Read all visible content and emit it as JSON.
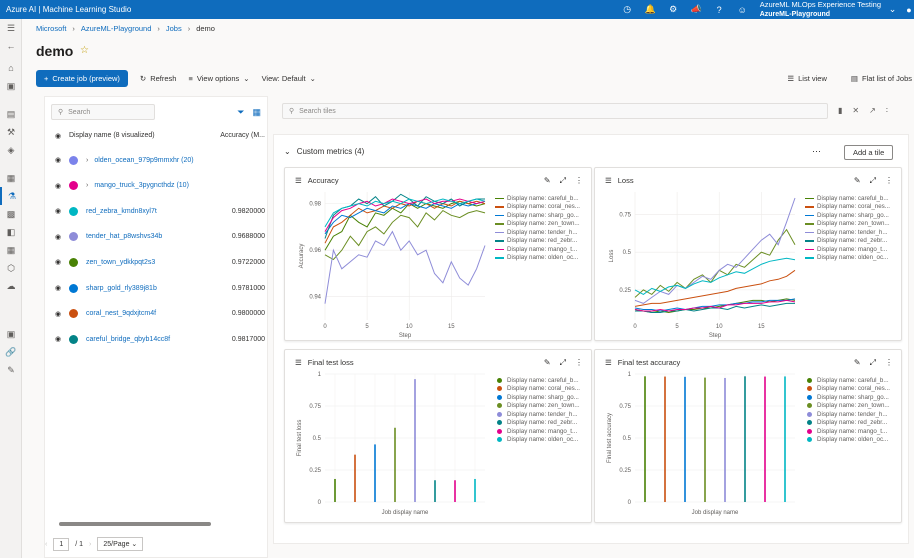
{
  "header": {
    "app_title": "Azure AI | Machine Learning Studio",
    "workspace_name": "AzureML MLOps Experience Testing",
    "workspace_sub": "AzureML-Playground",
    "brand_color": "#0f6cbd"
  },
  "breadcrumb": [
    "Microsoft",
    "AzureML-Playground",
    "Jobs",
    "demo"
  ],
  "page_title": "demo",
  "toolbar": {
    "create_job": "Create job (preview)",
    "refresh": "Refresh",
    "view_options": "View options",
    "view": "View: Default",
    "list_view": "List view",
    "flat_list": "Flat list of Jobs"
  },
  "runs_panel": {
    "search_placeholder": "Search",
    "col_display_name": "Display name (8 visualized)",
    "col_accuracy": "Accuracy (M...",
    "rows": [
      {
        "name": "olden_ocean_979p9mmxhr (20)",
        "value": "",
        "color": "#7b83eb",
        "group": true
      },
      {
        "name": "mango_truck_3pygncthdz (10)",
        "value": "",
        "color": "#e3008c",
        "group": true
      },
      {
        "name": "red_zebra_kmdn8xyl7t",
        "value": "0.9820000",
        "color": "#00b7c3",
        "group": false
      },
      {
        "name": "tender_hat_p8wshvs34b",
        "value": "0.9688000",
        "color": "#8e8cd8",
        "group": false
      },
      {
        "name": "zen_town_ydkkpqt2s3",
        "value": "0.9722000",
        "color": "#498205",
        "group": false
      },
      {
        "name": "sharp_gold_rly389j81b",
        "value": "0.9781000",
        "color": "#0078d4",
        "group": false
      },
      {
        "name": "coral_nest_9qdxjtcm4f",
        "value": "0.9800000",
        "color": "#ca5010",
        "group": false
      },
      {
        "name": "careful_bridge_qbyb14cc8f",
        "value": "0.9817000",
        "color": "#038387",
        "group": false
      }
    ],
    "pager_page": "1",
    "pager_total": "/ 1",
    "pager_size": "25/Page"
  },
  "tiles": {
    "search_placeholder": "Search tiles",
    "section_title": "Custom metrics (4)",
    "add_tile": "Add a tile",
    "legend": [
      {
        "label": "Display name: careful_b...",
        "color": "#498205"
      },
      {
        "label": "Display name: coral_nes...",
        "color": "#ca5010"
      },
      {
        "label": "Display name: sharp_go...",
        "color": "#0078d4"
      },
      {
        "label": "Display name: zen_town...",
        "color": "#6b8e23"
      },
      {
        "label": "Display name: tender_h...",
        "color": "#8e8cd8"
      },
      {
        "label": "Display name: red_zebr...",
        "color": "#038387"
      },
      {
        "label": "Display name: mango_t...",
        "color": "#e3008c"
      },
      {
        "label": "Display name: olden_oc...",
        "color": "#00b7c3"
      }
    ]
  },
  "chart_data": [
    {
      "type": "line",
      "title": "Accuracy",
      "xlabel": "Step",
      "ylabel": "Accuracy",
      "xlim": [
        0,
        19
      ],
      "ylim": [
        0.93,
        0.985
      ],
      "xticks": [
        0,
        5,
        10,
        15
      ],
      "yticks": [
        0.94,
        0.96,
        0.98
      ],
      "series": [
        {
          "values": [
            0.96,
            0.966,
            0.968,
            0.975,
            0.972,
            0.97,
            0.976,
            0.975,
            0.978,
            0.976,
            0.98,
            0.978,
            0.98,
            0.979,
            0.978,
            0.98,
            0.981,
            0.98,
            0.979,
            0.98
          ]
        },
        {
          "values": [
            0.963,
            0.97,
            0.972,
            0.975,
            0.978,
            0.976,
            0.977,
            0.979,
            0.978,
            0.98,
            0.979,
            0.981,
            0.98,
            0.978,
            0.98,
            0.979,
            0.981,
            0.98,
            0.981,
            0.98
          ]
        },
        {
          "values": [
            0.967,
            0.972,
            0.975,
            0.974,
            0.976,
            0.978,
            0.977,
            0.976,
            0.979,
            0.978,
            0.98,
            0.979,
            0.978,
            0.98,
            0.979,
            0.978,
            0.98,
            0.979,
            0.98,
            0.981
          ]
        },
        {
          "values": [
            0.958,
            0.956,
            0.96,
            0.966,
            0.962,
            0.968,
            0.97,
            0.967,
            0.972,
            0.975,
            0.974,
            0.97,
            0.976,
            0.973,
            0.977,
            0.975,
            0.974,
            0.976,
            0.977,
            0.976
          ]
        },
        {
          "values": [
            0.937,
            0.96,
            0.952,
            0.955,
            0.958,
            0.957,
            0.964,
            0.962,
            0.968,
            0.96,
            0.964,
            0.958,
            0.96,
            0.95,
            0.946,
            0.955,
            0.948,
            0.945,
            0.952,
            0.962
          ]
        },
        {
          "values": [
            0.965,
            0.975,
            0.978,
            0.979,
            0.982,
            0.98,
            0.983,
            0.979,
            0.981,
            0.984,
            0.982,
            0.979,
            0.983,
            0.981,
            0.98,
            0.982,
            0.979,
            0.981,
            0.982,
            0.982
          ]
        },
        {
          "values": [
            0.968,
            0.974,
            0.977,
            0.978,
            0.98,
            0.981,
            0.979,
            0.98,
            0.982,
            0.981,
            0.98,
            0.981,
            0.982,
            0.98,
            0.981,
            0.981,
            0.982,
            0.981,
            0.98,
            0.981
          ]
        },
        {
          "values": [
            0.97,
            0.976,
            0.978,
            0.979,
            0.98,
            0.979,
            0.981,
            0.98,
            0.981,
            0.98,
            0.982,
            0.981,
            0.98,
            0.981,
            0.982,
            0.981,
            0.98,
            0.981,
            0.982,
            0.981
          ]
        }
      ]
    },
    {
      "type": "line",
      "title": "Loss",
      "xlabel": "Step",
      "ylabel": "Loss",
      "xlim": [
        0,
        19
      ],
      "ylim": [
        0.05,
        0.9
      ],
      "xticks": [
        0,
        5,
        10,
        15
      ],
      "yticks": [
        0.25,
        0.5,
        0.75
      ],
      "series": [
        {
          "values": [
            0.12,
            0.11,
            0.1,
            0.11,
            0.1,
            0.11,
            0.12,
            0.12,
            0.13,
            0.13,
            0.14,
            0.15,
            0.16,
            0.17,
            0.18,
            0.18,
            0.17,
            0.18,
            0.19,
            0.18
          ]
        },
        {
          "values": [
            0.14,
            0.15,
            0.16,
            0.16,
            0.17,
            0.18,
            0.19,
            0.2,
            0.21,
            0.22,
            0.23,
            0.24,
            0.26,
            0.27,
            0.28,
            0.29,
            0.31,
            0.32,
            0.34,
            0.38
          ]
        },
        {
          "values": [
            0.13,
            0.12,
            0.12,
            0.11,
            0.12,
            0.13,
            0.12,
            0.13,
            0.14,
            0.14,
            0.15,
            0.15,
            0.16,
            0.16,
            0.17,
            0.17,
            0.18,
            0.18,
            0.18,
            0.19
          ]
        },
        {
          "values": [
            0.2,
            0.25,
            0.22,
            0.28,
            0.24,
            0.3,
            0.26,
            0.32,
            0.35,
            0.3,
            0.38,
            0.35,
            0.42,
            0.4,
            0.45,
            0.5,
            0.48,
            0.58,
            0.65,
            0.55
          ]
        },
        {
          "values": [
            0.18,
            0.16,
            0.2,
            0.24,
            0.22,
            0.28,
            0.26,
            0.3,
            0.34,
            0.32,
            0.38,
            0.42,
            0.4,
            0.46,
            0.52,
            0.58,
            0.62,
            0.55,
            0.7,
            0.86
          ]
        },
        {
          "values": [
            0.11,
            0.11,
            0.1,
            0.1,
            0.11,
            0.11,
            0.12,
            0.11,
            0.12,
            0.13,
            0.13,
            0.12,
            0.14,
            0.13,
            0.14,
            0.15,
            0.14,
            0.15,
            0.16,
            0.16
          ]
        },
        {
          "values": [
            0.12,
            0.11,
            0.11,
            0.12,
            0.11,
            0.12,
            0.12,
            0.13,
            0.13,
            0.14,
            0.13,
            0.15,
            0.15,
            0.16,
            0.16,
            0.16,
            0.17,
            0.17,
            0.18,
            0.17
          ]
        },
        {
          "values": [
            0.25,
            0.22,
            0.26,
            0.24,
            0.27,
            0.28,
            0.26,
            0.29,
            0.31,
            0.3,
            0.33,
            0.35,
            0.37,
            0.36,
            0.39,
            0.42,
            0.44,
            0.45,
            0.46,
            0.45
          ]
        }
      ]
    },
    {
      "type": "bar",
      "title": "Final test loss",
      "xlabel": "Job display name",
      "ylabel": "Final test loss",
      "ylim": [
        0,
        1
      ],
      "yticks": [
        0,
        0.25,
        0.5,
        0.75,
        1
      ],
      "values": [
        0.18,
        0.37,
        0.45,
        0.58,
        0.96,
        0.17,
        0.17,
        0.18
      ]
    },
    {
      "type": "bar",
      "title": "Final test accuracy",
      "xlabel": "Job display name",
      "ylabel": "Final test accuracy",
      "ylim": [
        0,
        1
      ],
      "yticks": [
        0,
        0.25,
        0.5,
        0.75,
        1
      ],
      "values": [
        0.982,
        0.98,
        0.978,
        0.972,
        0.969,
        0.982,
        0.98,
        0.981
      ]
    }
  ]
}
